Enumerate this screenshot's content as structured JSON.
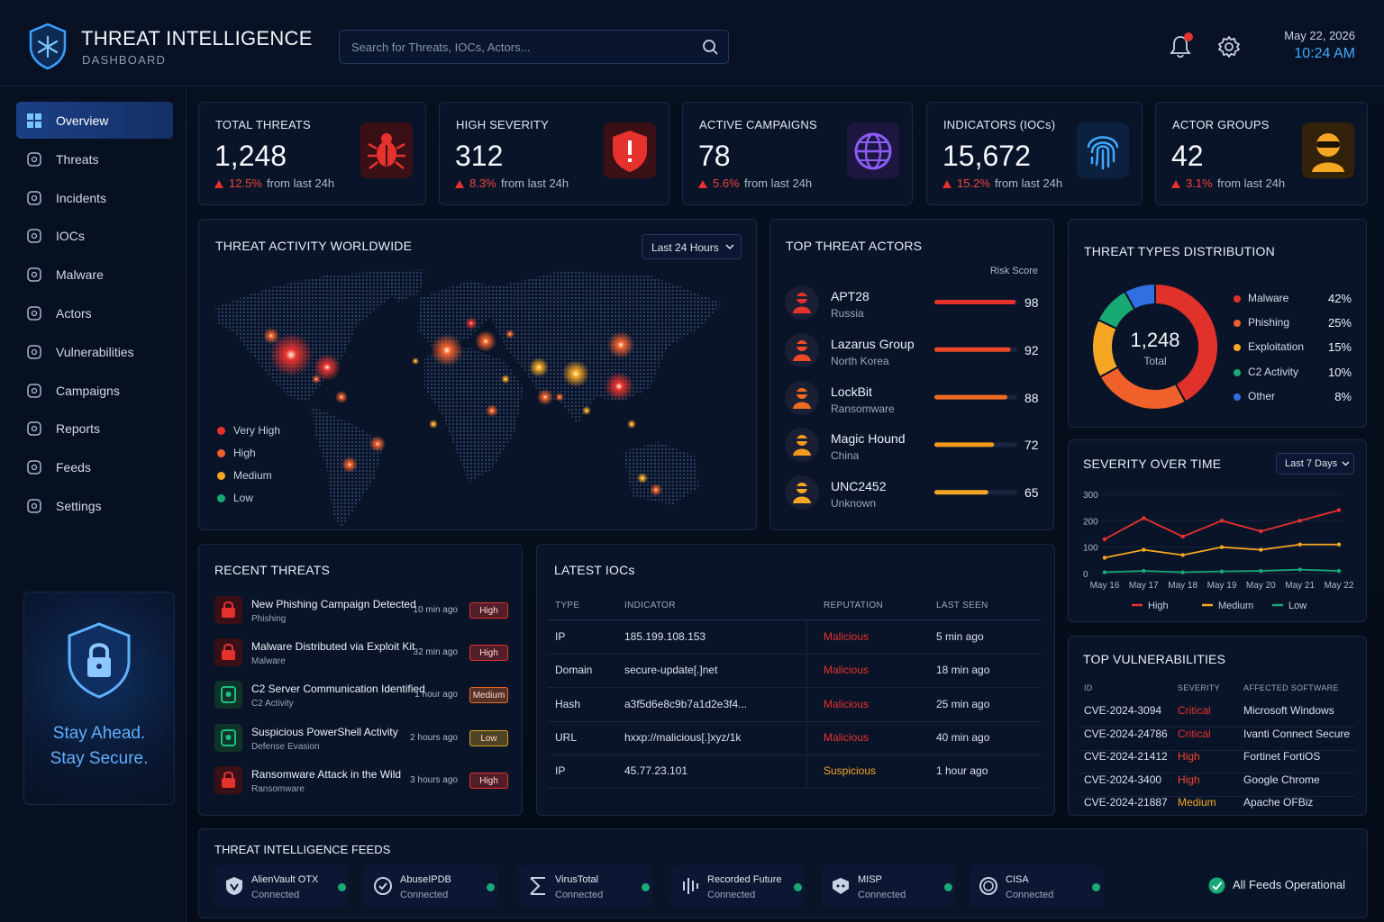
{
  "header": {
    "title": "THREAT INTELLIGENCE",
    "subtitle": "DASHBOARD",
    "search_placeholder": "Search for Threats, IOCs, Actors...",
    "date": "May 22, 2026",
    "time": "10:24 AM"
  },
  "sidebar": {
    "items": [
      "Overview",
      "Threats",
      "Incidents",
      "IOCs",
      "Malware",
      "Actors",
      "Vulnerabilities",
      "Campaigns",
      "Reports",
      "Feeds",
      "Settings"
    ],
    "promo": [
      "Stay Ahead.",
      "Stay Secure."
    ]
  },
  "kpis": [
    {
      "label": "TOTAL THREATS",
      "value": "1,248",
      "change": "12.5%",
      "note": "from last 24h"
    },
    {
      "label": "HIGH SEVERITY",
      "value": "312",
      "change": "8.3%",
      "note": "from last 24h"
    },
    {
      "label": "ACTIVE CAMPAIGNS",
      "value": "78",
      "change": "5.6%",
      "note": "from last 24h"
    },
    {
      "label": "INDICATORS (IOCs)",
      "value": "15,672",
      "change": "15.2%",
      "note": "from last 24h"
    },
    {
      "label": "ACTOR GROUPS",
      "value": "42",
      "change": "3.1%",
      "note": "from last 24h"
    }
  ],
  "map": {
    "title": "THREAT ACTIVITY WORLDWIDE",
    "range": "Last 24 Hours",
    "legend": [
      {
        "name": "Very High",
        "color": "#e5322d"
      },
      {
        "name": "High",
        "color": "#f0602a"
      },
      {
        "name": "Medium",
        "color": "#f5a623"
      },
      {
        "name": "Low",
        "color": "#19a974"
      }
    ]
  },
  "actors": {
    "title": "TOP THREAT ACTORS",
    "column": "Risk Score",
    "xlim": [
      0,
      100
    ],
    "rows": [
      {
        "name": "APT28",
        "origin": "Russia",
        "score": 98,
        "color": "#e5322d"
      },
      {
        "name": "Lazarus Group",
        "origin": "North Korea",
        "score": 92,
        "color": "#ec4a25"
      },
      {
        "name": "LockBit",
        "origin": "Ransomware",
        "score": 88,
        "color": "#f06a22"
      },
      {
        "name": "Magic Hound",
        "origin": "China",
        "score": 72,
        "color": "#f59a1c"
      },
      {
        "name": "UNC2452",
        "origin": "Unknown",
        "score": 65,
        "color": "#f5a623"
      }
    ]
  },
  "chart_data": [
    {
      "type": "pie",
      "title": "THREAT TYPES DISTRIBUTION",
      "center_value": "1,248",
      "center_label": "Total",
      "categories": [
        "Malware",
        "Phishing",
        "Exploitation",
        "C2 Activity",
        "Other"
      ],
      "values": [
        42,
        25,
        15,
        10,
        8
      ],
      "value_labels": [
        "42%",
        "25%",
        "15%",
        "10%",
        "8%"
      ],
      "colors": [
        "#e0312b",
        "#f0602a",
        "#f5a623",
        "#19a974",
        "#2f6fe0"
      ]
    },
    {
      "type": "line",
      "title": "SEVERITY OVER TIME",
      "range": "Last 7 Days",
      "categories": [
        "May 16",
        "May 17",
        "May 18",
        "May 19",
        "May 20",
        "May 21",
        "May 22"
      ],
      "ylim": [
        0,
        300
      ],
      "yticks": [
        0,
        100,
        200,
        300
      ],
      "series": [
        {
          "name": "High",
          "color": "#e5322d",
          "values": [
            130,
            210,
            140,
            200,
            160,
            200,
            240
          ]
        },
        {
          "name": "Medium",
          "color": "#f5a623",
          "values": [
            60,
            90,
            70,
            100,
            90,
            110,
            110
          ]
        },
        {
          "name": "Low",
          "color": "#19a974",
          "values": [
            5,
            10,
            5,
            8,
            10,
            15,
            10
          ]
        }
      ]
    }
  ],
  "recent_threats": {
    "title": "RECENT THREATS",
    "rows": [
      {
        "title": "New Phishing Campaign Detected",
        "category": "Phishing",
        "time": "10 min ago",
        "severity": "High",
        "color": "#e5322d"
      },
      {
        "title": "Malware Distributed via Exploit Kit",
        "category": "Malware",
        "time": "32 min ago",
        "severity": "High",
        "color": "#e5322d"
      },
      {
        "title": "C2 Server Communication Identified",
        "category": "C2 Activity",
        "time": "1 hour ago",
        "severity": "Medium",
        "color": "#f06a22"
      },
      {
        "title": "Suspicious PowerShell Activity",
        "category": "Defense Evasion",
        "time": "2 hours ago",
        "severity": "Low",
        "color": "#d9a21c"
      },
      {
        "title": "Ransomware Attack in the Wild",
        "category": "Ransomware",
        "time": "3 hours ago",
        "severity": "High",
        "color": "#e5322d"
      }
    ]
  },
  "iocs": {
    "title": "LATEST IOCs",
    "columns": [
      "TYPE",
      "INDICATOR",
      "REPUTATION",
      "LAST SEEN"
    ],
    "rows": [
      {
        "type": "IP",
        "indicator": "185.199.108.153",
        "reputation": "Malicious",
        "last_seen": "5 min ago",
        "color": "#e5322d"
      },
      {
        "type": "Domain",
        "indicator": "secure-update[.]net",
        "reputation": "Malicious",
        "last_seen": "18 min ago",
        "color": "#e5322d"
      },
      {
        "type": "Hash",
        "indicator": "a3f5d6e8c9b7a1d2e3f4...",
        "reputation": "Malicious",
        "last_seen": "25 min ago",
        "color": "#e5322d"
      },
      {
        "type": "URL",
        "indicator": "hxxp://malicious[.]xyz/1k",
        "reputation": "Malicious",
        "last_seen": "40 min ago",
        "color": "#e5322d"
      },
      {
        "type": "IP",
        "indicator": "45.77.23.101",
        "reputation": "Suspicious",
        "last_seen": "1 hour ago",
        "color": "#f5a623"
      }
    ]
  },
  "vulns": {
    "title": "TOP VULNERABILITIES",
    "columns": [
      "ID",
      "SEVERITY",
      "AFFECTED SOFTWARE"
    ],
    "rows": [
      {
        "id": "CVE-2024-3094",
        "severity": "Critical",
        "software": "Microsoft Windows",
        "color": "#e5322d"
      },
      {
        "id": "CVE-2024-24786",
        "severity": "Critical",
        "software": "Ivanti Connect Secure",
        "color": "#e5322d"
      },
      {
        "id": "CVE-2024-21412",
        "severity": "High",
        "software": "Fortinet FortiOS",
        "color": "#f0452a"
      },
      {
        "id": "CVE-2024-3400",
        "severity": "High",
        "software": "Google Chrome",
        "color": "#f0452a"
      },
      {
        "id": "CVE-2024-21887",
        "severity": "Medium",
        "software": "Apache OFBiz",
        "color": "#f5a623"
      }
    ]
  },
  "feeds": {
    "title": "THREAT INTELLIGENCE FEEDS",
    "items": [
      {
        "name": "AlienVault OTX",
        "status": "Connected"
      },
      {
        "name": "AbuseIPDB",
        "status": "Connected"
      },
      {
        "name": "VirusTotal",
        "status": "Connected"
      },
      {
        "name": "Recorded Future",
        "status": "Connected"
      },
      {
        "name": "MISP",
        "status": "Connected"
      },
      {
        "name": "CISA",
        "status": "Connected"
      }
    ],
    "summary": "All Feeds Operational"
  }
}
